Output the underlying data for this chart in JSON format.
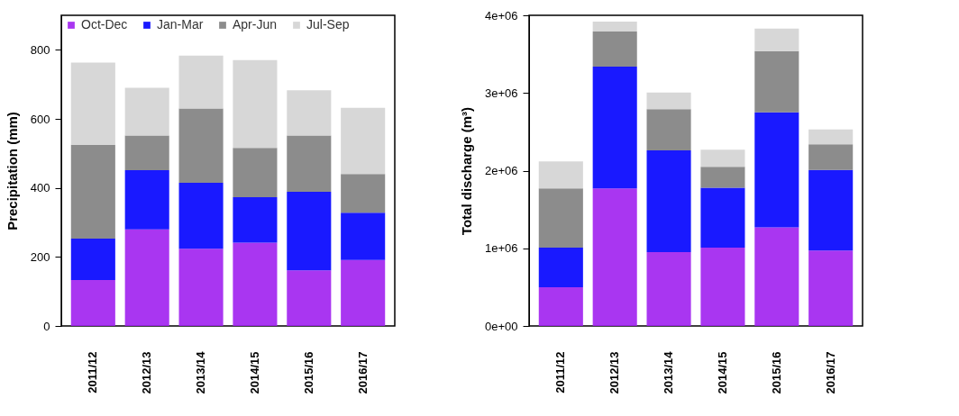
{
  "chart_data": [
    {
      "type": "bar",
      "stacked": true,
      "ylabel": "Precipitation (mm)",
      "categories": [
        "2011/12",
        "2012/13",
        "2013/14",
        "2014/15",
        "2015/16",
        "2016/17"
      ],
      "ylim": [
        0,
        900
      ],
      "yticks": [
        0,
        200,
        400,
        600,
        800
      ],
      "grid": false,
      "legend": "top",
      "series": [
        {
          "name": "Oct-Dec",
          "color": "#a020f0",
          "values": [
            133,
            280,
            224,
            241,
            161,
            191
          ]
        },
        {
          "name": "Jan-Mar",
          "color": "#0000ff",
          "values": [
            120,
            171,
            191,
            132,
            228,
            137
          ]
        },
        {
          "name": "Apr-Jun",
          "color": "#808080",
          "values": [
            272,
            101,
            215,
            143,
            163,
            112
          ]
        },
        {
          "name": "Jul-Sep",
          "color": "#d3d3d3",
          "values": [
            238,
            138,
            153,
            254,
            131,
            192
          ]
        }
      ]
    },
    {
      "type": "bar",
      "stacked": true,
      "ylabel": "Total discharge (m³)",
      "categories": [
        "2011/12",
        "2012/13",
        "2013/14",
        "2014/15",
        "2015/16",
        "2016/17"
      ],
      "ylim": [
        0,
        4000000
      ],
      "yticks": [
        {
          "value": 0,
          "label": "0e+00"
        },
        {
          "value": 1000000,
          "label": "1e+06"
        },
        {
          "value": 2000000,
          "label": "2e+06"
        },
        {
          "value": 3000000,
          "label": "3e+06"
        },
        {
          "value": 4000000,
          "label": "4e+06"
        }
      ],
      "grid": false,
      "series": [
        {
          "color": "#a020f0",
          "values": [
            500000,
            1770000,
            950000,
            1010000,
            1270000,
            970000
          ]
        },
        {
          "color": "#0000ff",
          "values": [
            510000,
            1570000,
            1310000,
            770000,
            1480000,
            1040000
          ]
        },
        {
          "color": "#808080",
          "values": [
            760000,
            450000,
            530000,
            270000,
            790000,
            330000
          ]
        },
        {
          "color": "#d3d3d3",
          "values": [
            350000,
            130000,
            215000,
            220000,
            290000,
            190000
          ]
        }
      ]
    }
  ]
}
